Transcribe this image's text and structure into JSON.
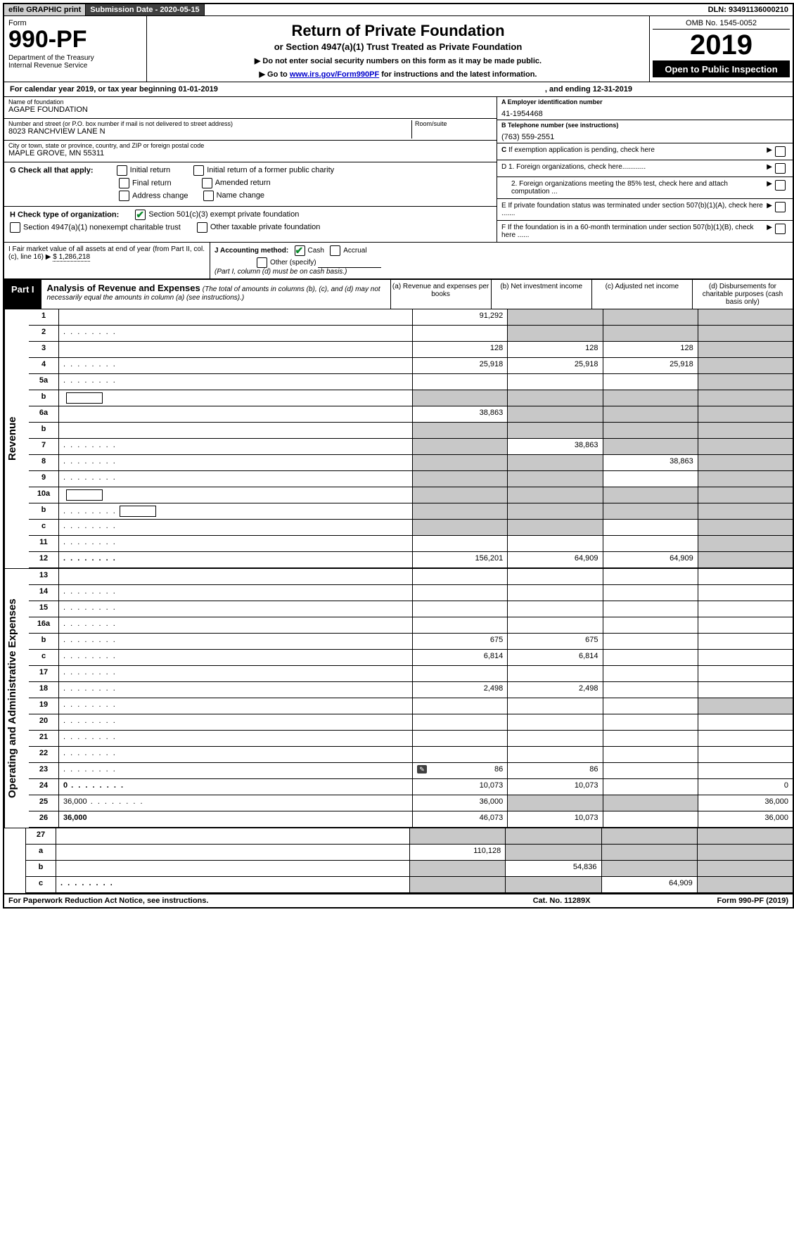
{
  "top_bar": {
    "efile": "efile GRAPHIC print",
    "submission_label": "Submission Date - 2020-05-15",
    "dln": "DLN: 93491136000210"
  },
  "header": {
    "form_word": "Form",
    "form_number": "990-PF",
    "dept": "Department of the Treasury",
    "irs": "Internal Revenue Service",
    "title": "Return of Private Foundation",
    "subtitle": "or Section 4947(a)(1) Trust Treated as Private Foundation",
    "instr1": "▶ Do not enter social security numbers on this form as it may be made public.",
    "instr2_pre": "▶ Go to ",
    "instr2_link": "www.irs.gov/Form990PF",
    "instr2_post": " for instructions and the latest information.",
    "omb": "OMB No. 1545-0052",
    "year": "2019",
    "open_public": "Open to Public Inspection"
  },
  "cal_year": {
    "prefix": "For calendar year 2019, or tax year beginning 01-01-2019",
    "ending": ", and ending 12-31-2019"
  },
  "entity": {
    "name_label": "Name of foundation",
    "name": "AGAPE FOUNDATION",
    "addr_label": "Number and street (or P.O. box number if mail is not delivered to street address)",
    "room_label": "Room/suite",
    "addr": "8023 RANCHVIEW LANE N",
    "city_label": "City or town, state or province, country, and ZIP or foreign postal code",
    "city": "MAPLE GROVE, MN  55311",
    "ein_label": "A Employer identification number",
    "ein": "41-1954468",
    "phone_label": "B Telephone number (see instructions)",
    "phone": "(763) 559-2551",
    "c_label": "C If exemption application is pending, check here"
  },
  "sectionG": {
    "label": "G Check all that apply:",
    "opts": [
      "Initial return",
      "Initial return of a former public charity",
      "Final return",
      "Amended return",
      "Address change",
      "Name change"
    ]
  },
  "sectionH": {
    "label": "H Check type of organization:",
    "opt1": "Section 501(c)(3) exempt private foundation",
    "opt2": "Section 4947(a)(1) nonexempt charitable trust",
    "opt3": "Other taxable private foundation"
  },
  "sectionD": {
    "d1": "D 1. Foreign organizations, check here............",
    "d2": "2. Foreign organizations meeting the 85% test, check here and attach computation ...",
    "e": "E  If private foundation status was terminated under section 507(b)(1)(A), check here .......",
    "f": "F  If the foundation is in a 60-month termination under section 507(b)(1)(B), check here ......"
  },
  "sectionI": {
    "label": "I Fair market value of all assets at end of year (from Part II, col. (c), line 16)",
    "value": "$  1,286,218"
  },
  "sectionJ": {
    "label": "J Accounting method:",
    "cash": "Cash",
    "accrual": "Accrual",
    "other": "Other (specify)",
    "note": "(Part I, column (d) must be on cash basis.)"
  },
  "part1": {
    "label": "Part I",
    "title": "Analysis of Revenue and Expenses",
    "note": "(The total of amounts in columns (b), (c), and (d) may not necessarily equal the amounts in column (a) (see instructions).)",
    "col_a": "(a)   Revenue and expenses per books",
    "col_b": "(b)  Net investment income",
    "col_c": "(c)  Adjusted net income",
    "col_d": "(d)  Disbursements for charitable purposes (cash basis only)"
  },
  "side_labels": {
    "revenue": "Revenue",
    "expenses": "Operating and Administrative Expenses"
  },
  "rows": [
    {
      "n": "1",
      "d": "",
      "a": "91,292",
      "b": "",
      "c": "",
      "sb": true,
      "sc": true,
      "sd": true
    },
    {
      "n": "2",
      "d": "",
      "a": "",
      "b": "",
      "c": "",
      "sb": true,
      "sc": true,
      "sd": true,
      "dots": true
    },
    {
      "n": "3",
      "d": "",
      "a": "128",
      "b": "128",
      "c": "128",
      "sd": true
    },
    {
      "n": "4",
      "d": "",
      "a": "25,918",
      "b": "25,918",
      "c": "25,918",
      "sd": true,
      "dots": true
    },
    {
      "n": "5a",
      "d": "",
      "a": "",
      "b": "",
      "c": "",
      "sd": true,
      "dots": true
    },
    {
      "n": "b",
      "d": "",
      "a": "",
      "b": "",
      "c": "",
      "sa": true,
      "sb": true,
      "sc": true,
      "sd": true,
      "inline_box": true
    },
    {
      "n": "6a",
      "d": "",
      "a": "38,863",
      "b": "",
      "c": "",
      "sb": true,
      "sc": true,
      "sd": true
    },
    {
      "n": "b",
      "d": "",
      "a": "",
      "b": "",
      "c": "",
      "sa": true,
      "sb": true,
      "sc": true,
      "sd": true
    },
    {
      "n": "7",
      "d": "",
      "a": "",
      "b": "38,863",
      "c": "",
      "sa": true,
      "sc": true,
      "sd": true,
      "dots": true
    },
    {
      "n": "8",
      "d": "",
      "a": "",
      "b": "",
      "c": "38,863",
      "sa": true,
      "sb": true,
      "sd": true,
      "dots": true
    },
    {
      "n": "9",
      "d": "",
      "a": "",
      "b": "",
      "c": "",
      "sa": true,
      "sb": true,
      "sd": true,
      "dots": true
    },
    {
      "n": "10a",
      "d": "",
      "a": "",
      "b": "",
      "c": "",
      "sa": true,
      "sb": true,
      "sc": true,
      "sd": true,
      "inline_box": true
    },
    {
      "n": "b",
      "d": "",
      "a": "",
      "b": "",
      "c": "",
      "sa": true,
      "sb": true,
      "sc": true,
      "sd": true,
      "inline_box": true,
      "dots": true
    },
    {
      "n": "c",
      "d": "",
      "a": "",
      "b": "",
      "c": "",
      "sa": true,
      "sb": true,
      "sd": true,
      "dots": true
    },
    {
      "n": "11",
      "d": "",
      "a": "",
      "b": "",
      "c": "",
      "sd": true,
      "dots": true
    },
    {
      "n": "12",
      "d": "",
      "a": "156,201",
      "b": "64,909",
      "c": "64,909",
      "sd": true,
      "bold": true,
      "dots": true
    }
  ],
  "exp_rows": [
    {
      "n": "13",
      "d": "",
      "a": "",
      "b": "",
      "c": ""
    },
    {
      "n": "14",
      "d": "",
      "a": "",
      "b": "",
      "c": "",
      "dots": true
    },
    {
      "n": "15",
      "d": "",
      "a": "",
      "b": "",
      "c": "",
      "dots": true
    },
    {
      "n": "16a",
      "d": "",
      "a": "",
      "b": "",
      "c": "",
      "dots": true
    },
    {
      "n": "b",
      "d": "",
      "a": "675",
      "b": "675",
      "c": "",
      "dots": true
    },
    {
      "n": "c",
      "d": "",
      "a": "6,814",
      "b": "6,814",
      "c": "",
      "dots": true
    },
    {
      "n": "17",
      "d": "",
      "a": "",
      "b": "",
      "c": "",
      "dots": true
    },
    {
      "n": "18",
      "d": "",
      "a": "2,498",
      "b": "2,498",
      "c": "",
      "dots": true
    },
    {
      "n": "19",
      "d": "",
      "a": "",
      "b": "",
      "c": "",
      "sd": true,
      "dots": true
    },
    {
      "n": "20",
      "d": "",
      "a": "",
      "b": "",
      "c": "",
      "dots": true
    },
    {
      "n": "21",
      "d": "",
      "a": "",
      "b": "",
      "c": "",
      "dots": true
    },
    {
      "n": "22",
      "d": "",
      "a": "",
      "b": "",
      "c": "",
      "dots": true
    },
    {
      "n": "23",
      "d": "",
      "a": "86",
      "b": "86",
      "c": "",
      "icon": true,
      "dots": true
    },
    {
      "n": "24",
      "d": "0",
      "a": "10,073",
      "b": "10,073",
      "c": "",
      "bold": true,
      "dots": true
    },
    {
      "n": "25",
      "d": "36,000",
      "a": "36,000",
      "b": "",
      "c": "",
      "sb": true,
      "sc": true,
      "dots": true
    },
    {
      "n": "26",
      "d": "36,000",
      "a": "46,073",
      "b": "10,073",
      "c": "",
      "bold": true
    }
  ],
  "final_rows": [
    {
      "n": "27",
      "d": "",
      "a": "",
      "b": "",
      "c": "",
      "sa": true,
      "sb": true,
      "sc": true,
      "sd": true
    },
    {
      "n": "a",
      "d": "",
      "a": "110,128",
      "b": "",
      "c": "",
      "sb": true,
      "sc": true,
      "sd": true,
      "bold": true
    },
    {
      "n": "b",
      "d": "",
      "a": "",
      "b": "54,836",
      "c": "",
      "sa": true,
      "sc": true,
      "sd": true,
      "bold": true
    },
    {
      "n": "c",
      "d": "",
      "a": "",
      "b": "",
      "c": "64,909",
      "sa": true,
      "sb": true,
      "sd": true,
      "bold": true,
      "dots": true
    }
  ],
  "footer": {
    "left": "For Paperwork Reduction Act Notice, see instructions.",
    "center": "Cat. No. 11289X",
    "right": "Form 990-PF (2019)"
  }
}
